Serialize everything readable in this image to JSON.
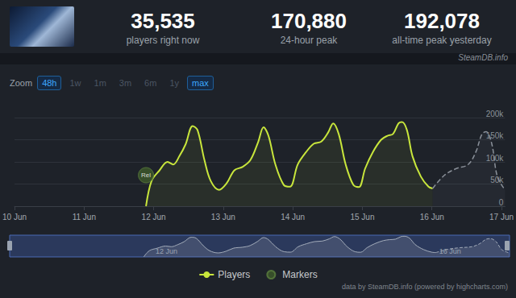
{
  "header": {
    "stats": [
      {
        "value": "35,535",
        "label": "players right now"
      },
      {
        "value": "170,880",
        "label": "24-hour peak"
      },
      {
        "value": "192,078",
        "label": "all-time peak yesterday"
      }
    ],
    "watermark": "SteamDB.info"
  },
  "zoom": {
    "label": "Zoom",
    "buttons": [
      "48h",
      "1w",
      "1m",
      "3m",
      "6m",
      "1y",
      "max"
    ],
    "active": [
      "48h",
      "max"
    ]
  },
  "chart_data": {
    "type": "line",
    "xlim": [
      10,
      17.05
    ],
    "xticks": [
      {
        "value": 10,
        "label": "10 Jun"
      },
      {
        "value": 11,
        "label": "11 Jun"
      },
      {
        "value": 12,
        "label": "12 Jun"
      },
      {
        "value": 13,
        "label": "13 Jun"
      },
      {
        "value": 14,
        "label": "14 Jun"
      },
      {
        "value": 15,
        "label": "15 Jun"
      },
      {
        "value": 16,
        "label": "16 Jun"
      },
      {
        "value": 17,
        "label": "17 Jun"
      }
    ],
    "ylim": [
      0,
      200000
    ],
    "yticks": [
      0,
      {
        "value": 50000,
        "label": "50k"
      },
      {
        "value": 100000,
        "label": "100k"
      },
      {
        "value": 150000,
        "label": "150k"
      },
      {
        "value": 200000,
        "label": "200k"
      }
    ],
    "grid": true,
    "legend": "bottom",
    "series": [
      {
        "name": "Players",
        "color": "#c8e63c",
        "x": [
          11.89,
          11.97,
          12.08,
          12.2,
          12.28,
          12.37,
          12.46,
          12.56,
          12.63,
          12.73,
          12.82,
          12.94,
          13.05,
          13.16,
          13.28,
          13.39,
          13.5,
          13.58,
          13.65,
          13.75,
          13.87,
          13.96,
          14.07,
          14.19,
          14.3,
          14.41,
          14.51,
          14.58,
          14.66,
          14.76,
          14.87,
          14.95,
          15.04,
          15.15,
          15.27,
          15.36,
          15.44,
          15.52,
          15.57,
          15.64,
          15.72,
          15.84,
          15.95,
          16.01
        ],
        "values": [
          0,
          57000,
          80000,
          100000,
          94000,
          113000,
          140000,
          181000,
          172000,
          104000,
          57000,
          37000,
          52000,
          81000,
          89000,
          104000,
          144000,
          178000,
          159000,
          94000,
          48000,
          44000,
          94000,
          122000,
          141000,
          146000,
          167000,
          187000,
          163000,
          94000,
          48000,
          43000,
          85000,
          122000,
          150000,
          159000,
          163000,
          187000,
          190000,
          172000,
          113000,
          67000,
          44000,
          40000
        ]
      },
      {
        "color": "#8a9099",
        "line_style": "dashed",
        "x": [
          16.01,
          16.18,
          16.35,
          16.52,
          16.63,
          16.72,
          16.78,
          16.86,
          16.94,
          17.05
        ],
        "values": [
          40000,
          70000,
          85000,
          94000,
          122000,
          163000,
          168000,
          141000,
          67000,
          37000
        ]
      },
      {
        "name": "Markers",
        "type": "scatter",
        "marker": "circle",
        "color": "#3d5a2a",
        "x": [
          11.89
        ],
        "values": [
          70000
        ],
        "text": [
          "Rel"
        ]
      }
    ]
  },
  "navigator": {
    "xticks": [
      {
        "value": 12,
        "label": "12 Jun"
      },
      {
        "value": 16,
        "label": "16 Jun"
      }
    ]
  },
  "footer": "data by SteamDB.info (powered by highcharts.com)"
}
